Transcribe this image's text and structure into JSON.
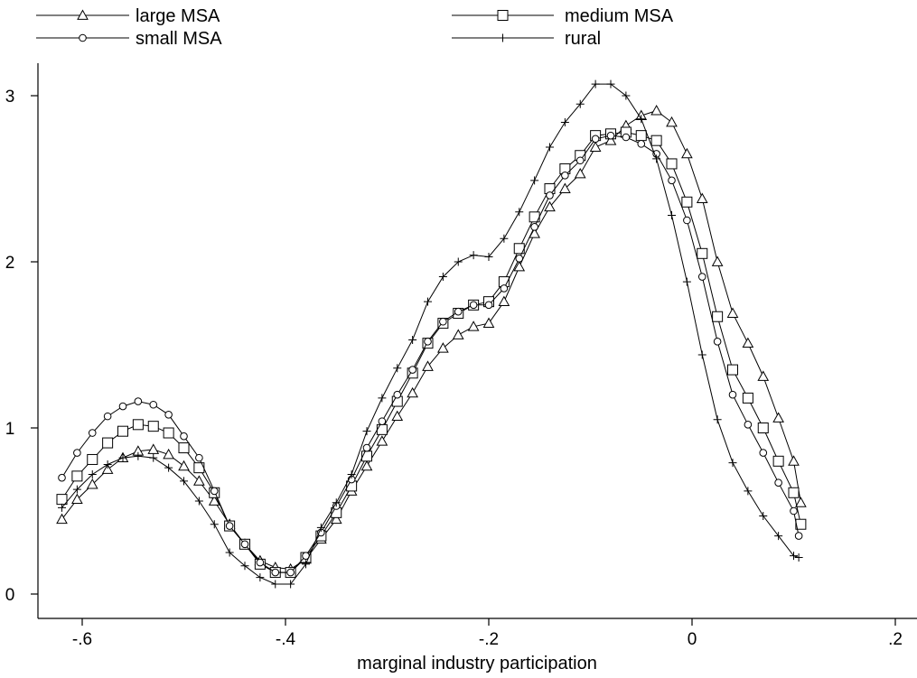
{
  "chart_data": {
    "type": "line",
    "title": "",
    "xlabel": "marginal industry participation",
    "ylabel": "",
    "xlim": [
      -0.64,
      0.22
    ],
    "ylim": [
      -0.08,
      3.18
    ],
    "xticks": [
      -0.6,
      -0.4,
      -0.2,
      0,
      0.2
    ],
    "xtick_labels": [
      "-.6",
      "-.4",
      "-.2",
      "0",
      ".2"
    ],
    "yticks": [
      0,
      1,
      2,
      3
    ],
    "ytick_labels": [
      "0",
      "1",
      "2",
      "3"
    ],
    "grid": false,
    "legend_position": "top",
    "x": [
      -0.62,
      -0.605,
      -0.59,
      -0.575,
      -0.56,
      -0.545,
      -0.53,
      -0.515,
      -0.5,
      -0.485,
      -0.47,
      -0.455,
      -0.44,
      -0.425,
      -0.41,
      -0.395,
      -0.38,
      -0.365,
      -0.35,
      -0.335,
      -0.32,
      -0.305,
      -0.29,
      -0.275,
      -0.26,
      -0.245,
      -0.23,
      -0.215,
      -0.2,
      -0.185,
      -0.17,
      -0.155,
      -0.14,
      -0.125,
      -0.11,
      -0.095,
      -0.08,
      -0.065,
      -0.05,
      -0.035,
      -0.02,
      -0.005,
      0.01,
      0.025,
      0.04,
      0.055,
      0.07,
      0.085,
      0.1
    ],
    "series": [
      {
        "name": "large MSA",
        "marker": "triangle",
        "values": [
          0.45,
          0.57,
          0.66,
          0.75,
          0.82,
          0.86,
          0.87,
          0.84,
          0.77,
          0.68,
          0.56,
          0.42,
          0.3,
          0.2,
          0.16,
          0.15,
          0.21,
          0.33,
          0.45,
          0.62,
          0.77,
          0.92,
          1.07,
          1.21,
          1.37,
          1.48,
          1.56,
          1.61,
          1.63,
          1.76,
          1.97,
          2.17,
          2.33,
          2.44,
          2.53,
          2.69,
          2.73,
          2.82,
          2.88,
          2.91,
          2.84,
          2.65,
          2.38,
          2.0,
          1.69,
          1.51,
          1.31,
          1.06,
          0.8
        ]
      },
      {
        "name": "medium MSA",
        "marker": "square",
        "values": [
          0.57,
          0.71,
          0.81,
          0.91,
          0.98,
          1.02,
          1.01,
          0.97,
          0.88,
          0.76,
          0.61,
          0.41,
          0.3,
          0.18,
          0.13,
          0.13,
          0.22,
          0.35,
          0.49,
          0.65,
          0.83,
          0.99,
          1.16,
          1.33,
          1.51,
          1.63,
          1.69,
          1.74,
          1.76,
          1.88,
          2.08,
          2.27,
          2.44,
          2.56,
          2.64,
          2.76,
          2.77,
          2.78,
          2.76,
          2.73,
          2.59,
          2.36,
          2.05,
          1.67,
          1.35,
          1.18,
          1.0,
          0.8,
          0.61
        ]
      },
      {
        "name": "small MSA",
        "marker": "circle",
        "values": [
          0.7,
          0.85,
          0.97,
          1.07,
          1.13,
          1.16,
          1.14,
          1.08,
          0.95,
          0.82,
          0.62,
          0.41,
          0.3,
          0.19,
          0.13,
          0.13,
          0.23,
          0.37,
          0.53,
          0.69,
          0.88,
          1.04,
          1.2,
          1.35,
          1.52,
          1.64,
          1.7,
          1.74,
          1.74,
          1.84,
          2.02,
          2.21,
          2.4,
          2.52,
          2.61,
          2.74,
          2.76,
          2.75,
          2.71,
          2.65,
          2.49,
          2.25,
          1.91,
          1.52,
          1.2,
          1.02,
          0.85,
          0.67,
          0.5
        ]
      },
      {
        "name": "rural",
        "marker": "plus",
        "values": [
          0.52,
          0.63,
          0.72,
          0.78,
          0.82,
          0.83,
          0.82,
          0.76,
          0.68,
          0.56,
          0.42,
          0.25,
          0.17,
          0.1,
          0.06,
          0.06,
          0.18,
          0.4,
          0.55,
          0.72,
          0.98,
          1.18,
          1.36,
          1.53,
          1.76,
          1.91,
          2.0,
          2.04,
          2.03,
          2.14,
          2.3,
          2.49,
          2.69,
          2.84,
          2.95,
          3.07,
          3.07,
          3.0,
          2.86,
          2.62,
          2.28,
          1.88,
          1.44,
          1.05,
          0.79,
          0.62,
          0.47,
          0.35,
          0.23
        ]
      }
    ],
    "series_tail": [
      {
        "name": "large MSA",
        "x": 0.107,
        "y": 0.55
      },
      {
        "name": "medium MSA",
        "x": 0.107,
        "y": 0.42
      },
      {
        "name": "small MSA",
        "x": 0.105,
        "y": 0.35
      },
      {
        "name": "rural",
        "x": 0.105,
        "y": 0.22
      }
    ]
  }
}
